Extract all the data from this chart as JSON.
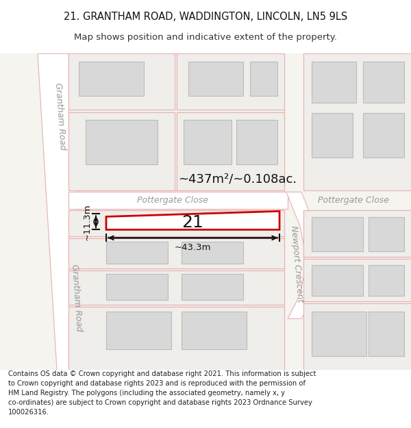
{
  "title": "21. GRANTHAM ROAD, WADDINGTON, LINCOLN, LN5 9LS",
  "subtitle": "Map shows position and indicative extent of the property.",
  "footer": "Contains OS data © Crown copyright and database right 2021. This information is subject\nto Crown copyright and database rights 2023 and is reproduced with the permission of\nHM Land Registry. The polygons (including the associated geometry, namely x, y\nco-ordinates) are subject to Crown copyright and database rights 2023 Ordnance Survey\n100026316.",
  "map_bg": "#f5f4ef",
  "road_fill": "#ffffff",
  "parcel_fill": "#f0eeea",
  "parcel_edge": "#e8b0b0",
  "building_fill": "#d8d8d8",
  "building_edge": "#bbbbbb",
  "highlight_fill": "#ffffff",
  "highlight_edge": "#cc0000",
  "label_gray": "#999999",
  "dim_black": "#111111",
  "area_label": "~437m²/~0.108ac.",
  "plot_number": "21",
  "dim_width": "~43.3m",
  "dim_height": "~11.3m",
  "street_grantham": "Grantham Road",
  "street_grantham2": "Grantham Road",
  "street_pottergate1": "Pottergate Close",
  "street_pottergate2": "Pottergate Close",
  "street_newport": "Newport Crescent",
  "title_fontsize": 10.5,
  "subtitle_fontsize": 9.5,
  "footer_fontsize": 7.2,
  "label_fontsize": 9.0
}
